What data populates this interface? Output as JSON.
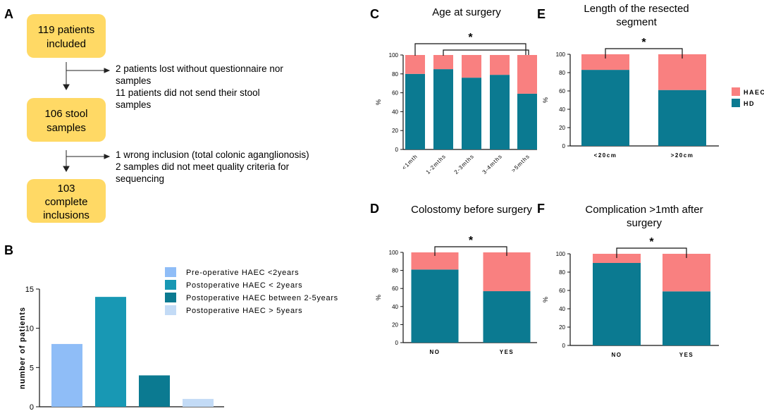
{
  "colors": {
    "haec": "#f98080",
    "hd": "#0b7a91",
    "box": "#ffd965"
  },
  "panel_labels": [
    "A",
    "B",
    "C",
    "D",
    "E",
    "F"
  ],
  "flowchart": {
    "boxes": [
      {
        "lines": [
          "119 patients",
          "included"
        ]
      },
      {
        "lines": [
          "106 stool",
          "samples"
        ]
      },
      {
        "lines": [
          "103",
          "complete",
          "inclusions"
        ]
      }
    ],
    "notes": [
      {
        "lines": [
          "2 patients lost without questionnaire nor",
          "samples",
          "11 patients did not send their stool",
          "samples"
        ]
      },
      {
        "lines": [
          "1 wrong inclusion (total colonic aganglionosis)",
          "2 samples did not meet quality criteria for",
          "sequencing"
        ]
      }
    ]
  },
  "legend_stack": [
    {
      "label": "HAEC",
      "color": "#f98080"
    },
    {
      "label": "HD",
      "color": "#0b7a91"
    }
  ],
  "chart_data": [
    {
      "id": "B",
      "type": "bar",
      "title": "",
      "xlabel": "",
      "ylabel": "number of patients",
      "ylim": [
        0,
        15
      ],
      "yticks": [
        0,
        5,
        10,
        15
      ],
      "categories": [
        "Pre-operative HAEC <2years",
        "Postoperative HAEC < 2years",
        "Postoperative HAEC between 2-5years",
        "Postoperative HAEC > 5years"
      ],
      "values": [
        8,
        14,
        4,
        1
      ],
      "colors": [
        "#8fbdf7",
        "#1898b4",
        "#0b7a91",
        "#c3dbf6"
      ],
      "legend": "right"
    },
    {
      "id": "C",
      "type": "bar",
      "stacked": true,
      "title": "Age at surgery",
      "ylabel": "%",
      "ylim": [
        0,
        100
      ],
      "yticks": [
        0,
        20,
        40,
        60,
        80,
        100
      ],
      "categories": [
        "<1mth",
        "1-2mths",
        "2-3mths",
        "3-4mths",
        ">5mths"
      ],
      "series": [
        {
          "name": "HD",
          "values": [
            80,
            85,
            76,
            79,
            59
          ]
        },
        {
          "name": "HAEC",
          "values": [
            20,
            15,
            24,
            21,
            41
          ]
        }
      ],
      "significance": [
        {
          "from": 0,
          "to": 4,
          "label": "*"
        },
        {
          "from": 1,
          "to": 4,
          "label": ""
        }
      ]
    },
    {
      "id": "D",
      "type": "bar",
      "stacked": true,
      "title": "Colostomy before surgery",
      "ylabel": "%",
      "ylim": [
        0,
        100
      ],
      "yticks": [
        0,
        20,
        40,
        60,
        80,
        100
      ],
      "categories": [
        "NO",
        "YES"
      ],
      "series": [
        {
          "name": "HD",
          "values": [
            81,
            57
          ]
        },
        {
          "name": "HAEC",
          "values": [
            19,
            43
          ]
        }
      ],
      "significance": [
        {
          "from": 0,
          "to": 1,
          "label": "*"
        }
      ]
    },
    {
      "id": "E",
      "type": "bar",
      "stacked": true,
      "title": "Length of the resected segment",
      "ylabel": "%",
      "ylim": [
        0,
        100
      ],
      "yticks": [
        0,
        20,
        40,
        60,
        80,
        100
      ],
      "categories": [
        "<20cm",
        ">20cm"
      ],
      "series": [
        {
          "name": "HD",
          "values": [
            83,
            61
          ]
        },
        {
          "name": "HAEC",
          "values": [
            17,
            39
          ]
        }
      ],
      "significance": [
        {
          "from": 0,
          "to": 1,
          "label": "*"
        }
      ]
    },
    {
      "id": "F",
      "type": "bar",
      "stacked": true,
      "title": "Complication >1mth after surgery",
      "ylabel": "%",
      "ylim": [
        0,
        100
      ],
      "yticks": [
        0,
        20,
        40,
        60,
        80,
        100
      ],
      "categories": [
        "NO",
        "YES"
      ],
      "series": [
        {
          "name": "HD",
          "values": [
            90,
            59
          ]
        },
        {
          "name": "HAEC",
          "values": [
            10,
            41
          ]
        }
      ],
      "significance": [
        {
          "from": 0,
          "to": 1,
          "label": "*"
        }
      ]
    }
  ]
}
